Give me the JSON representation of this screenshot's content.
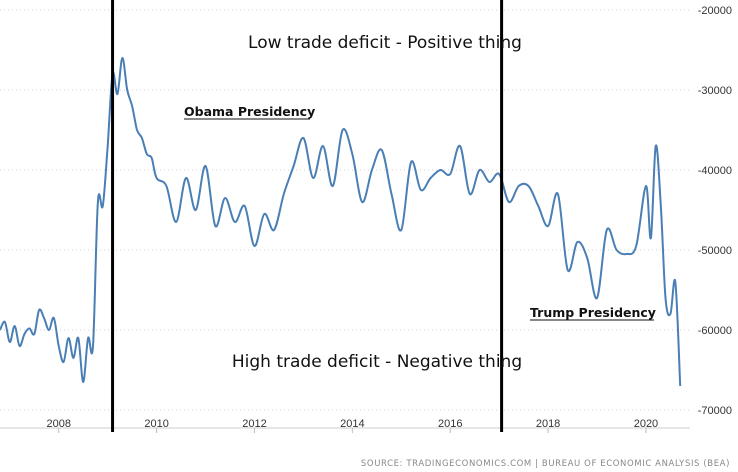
{
  "chart_data": {
    "type": "line",
    "title": "",
    "xlabel": "",
    "ylabel": "",
    "x_ticks": [
      "2008",
      "2010",
      "2012",
      "2014",
      "2016",
      "2018",
      "2020"
    ],
    "y_ticks": [
      "-20000",
      "-30000",
      "-40000",
      "-50000",
      "-60000",
      "-70000"
    ],
    "xlim": [
      2006.8,
      2020.9
    ],
    "ylim": [
      -70000,
      -20000
    ],
    "grid": "horizontal dotted",
    "line_color": "#4a7fb5",
    "series": [
      {
        "name": "",
        "x": [
          2006.8,
          2006.9,
          2007.0,
          2007.1,
          2007.2,
          2007.3,
          2007.4,
          2007.5,
          2007.6,
          2007.7,
          2007.8,
          2007.9,
          2008.0,
          2008.1,
          2008.2,
          2008.3,
          2008.4,
          2008.5,
          2008.6,
          2008.7,
          2008.8,
          2008.9,
          2009.0,
          2009.1,
          2009.2,
          2009.3,
          2009.4,
          2009.5,
          2009.6,
          2009.7,
          2009.8,
          2009.9,
          2010.0,
          2010.2,
          2010.4,
          2010.6,
          2010.8,
          2011.0,
          2011.2,
          2011.4,
          2011.6,
          2011.8,
          2012.0,
          2012.2,
          2012.4,
          2012.6,
          2012.8,
          2013.0,
          2013.2,
          2013.4,
          2013.6,
          2013.8,
          2014.0,
          2014.2,
          2014.4,
          2014.6,
          2014.8,
          2015.0,
          2015.2,
          2015.4,
          2015.6,
          2015.8,
          2016.0,
          2016.2,
          2016.4,
          2016.6,
          2016.8,
          2017.0,
          2017.2,
          2017.4,
          2017.6,
          2017.8,
          2018.0,
          2018.2,
          2018.4,
          2018.6,
          2018.8,
          2019.0,
          2019.2,
          2019.4,
          2019.6,
          2019.8,
          2020.0,
          2020.1,
          2020.2,
          2020.3,
          2020.4,
          2020.5,
          2020.6,
          2020.7
        ],
        "values": [
          -60000,
          -59000,
          -61500,
          -59500,
          -62000,
          -60500,
          -59800,
          -60500,
          -57500,
          -58500,
          -60000,
          -58500,
          -62000,
          -64000,
          -61000,
          -63500,
          -61000,
          -66500,
          -61000,
          -62000,
          -44000,
          -44500,
          -37000,
          -28000,
          -30500,
          -26000,
          -30000,
          -32000,
          -35000,
          -36000,
          -38000,
          -38500,
          -41000,
          -42000,
          -46500,
          -41000,
          -45000,
          -39500,
          -47000,
          -43500,
          -46500,
          -44500,
          -49500,
          -45500,
          -47500,
          -43000,
          -39500,
          -36000,
          -41000,
          -37000,
          -42000,
          -35000,
          -38000,
          -44000,
          -40000,
          -37500,
          -43000,
          -47500,
          -39000,
          -42500,
          -41000,
          -40000,
          -40500,
          -37000,
          -43000,
          -40000,
          -41500,
          -40500,
          -44000,
          -42000,
          -42000,
          -44500,
          -47000,
          -43000,
          -52500,
          -49000,
          -51000,
          -56000,
          -47500,
          -50000,
          -50500,
          -49500,
          -42000,
          -48500,
          -37000,
          -44000,
          -56000,
          -58000,
          -54000,
          -67000
        ]
      }
    ],
    "annotations": {
      "top_text": "Low trade deficit - Positive thing",
      "bottom_text": "High trade deficit - Negative thing",
      "obama_label": "Obama Presidency",
      "trump_label": "Trump Presidency"
    },
    "vertical_markers": [
      {
        "name": "obama-start",
        "x": 2009.1
      },
      {
        "name": "trump-start",
        "x": 2017.05
      }
    ],
    "source_text": "SOURCE: TRADINGECONOMICS.COM  |  BUREAU OF ECONOMIC ANALYSIS (BEA)"
  }
}
